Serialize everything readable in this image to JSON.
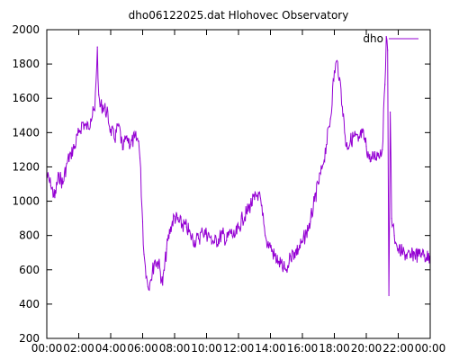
{
  "chart_data": {
    "type": "line",
    "title": "dho06122025.dat Hlohovec Observatory",
    "xlabel": "",
    "ylabel": "",
    "ylim": [
      200,
      2000
    ],
    "y_ticks": [
      200,
      400,
      600,
      800,
      1000,
      1200,
      1400,
      1600,
      1800,
      2000
    ],
    "xlim": [
      "00:00",
      "24:00"
    ],
    "x_ticks": [
      "00:00",
      "02:00",
      "04:00",
      "06:00",
      "08:00",
      "10:00",
      "12:00",
      "14:00",
      "16:00",
      "18:00",
      "20:00",
      "22:00",
      "00:00"
    ],
    "grid": false,
    "legend_position": "top-right",
    "series": [
      {
        "name": "dho",
        "color": "#9400d3",
        "x": [
          "00:00",
          "00:15",
          "00:30",
          "00:45",
          "01:00",
          "01:15",
          "01:30",
          "01:45",
          "02:00",
          "02:15",
          "02:30",
          "02:45",
          "03:00",
          "03:10",
          "03:15",
          "03:20",
          "03:30",
          "03:45",
          "04:00",
          "04:15",
          "04:30",
          "04:45",
          "05:00",
          "05:15",
          "05:30",
          "05:45",
          "05:50",
          "06:00",
          "06:05",
          "06:10",
          "06:15",
          "06:20",
          "06:30",
          "06:45",
          "07:00",
          "07:15",
          "07:30",
          "07:45",
          "08:00",
          "08:15",
          "08:30",
          "08:45",
          "09:00",
          "09:15",
          "09:30",
          "09:45",
          "10:00",
          "10:15",
          "10:30",
          "10:45",
          "11:00",
          "11:15",
          "11:30",
          "11:45",
          "12:00",
          "12:15",
          "12:30",
          "12:45",
          "13:00",
          "13:15",
          "13:30",
          "13:40",
          "13:45",
          "14:00",
          "14:15",
          "14:30",
          "14:45",
          "15:00",
          "15:10",
          "15:15",
          "15:30",
          "15:45",
          "16:00",
          "16:15",
          "16:30",
          "16:45",
          "17:00",
          "17:15",
          "17:30",
          "17:45",
          "18:00",
          "18:10",
          "18:20",
          "18:30",
          "18:45",
          "19:00",
          "19:15",
          "19:30",
          "19:45",
          "20:00",
          "20:15",
          "20:30",
          "20:45",
          "21:00",
          "21:10",
          "21:15",
          "21:20",
          "21:25",
          "21:30",
          "21:35",
          "21:40",
          "21:45",
          "21:50",
          "21:55",
          "22:00",
          "22:15",
          "22:30",
          "22:45",
          "23:00",
          "23:15",
          "23:30",
          "23:45",
          "23:59"
        ],
        "values": [
          1150,
          1090,
          1020,
          1160,
          1100,
          1220,
          1280,
          1320,
          1400,
          1460,
          1420,
          1480,
          1530,
          1900,
          1620,
          1550,
          1560,
          1520,
          1420,
          1360,
          1450,
          1300,
          1380,
          1330,
          1370,
          1350,
          1250,
          880,
          690,
          620,
          560,
          500,
          540,
          650,
          640,
          510,
          720,
          850,
          910,
          880,
          860,
          850,
          800,
          770,
          780,
          820,
          810,
          790,
          760,
          780,
          810,
          770,
          820,
          790,
          840,
          900,
          930,
          980,
          1010,
          1050,
          920,
          800,
          770,
          730,
          680,
          650,
          610,
          600,
          640,
          680,
          700,
          720,
          760,
          820,
          880,
          1000,
          1100,
          1200,
          1330,
          1480,
          1760,
          1820,
          1720,
          1550,
          1320,
          1350,
          1380,
          1350,
          1400,
          1320,
          1230,
          1260,
          1280,
          1300,
          1680,
          1960,
          1880,
          450,
          1520,
          900,
          860,
          800,
          760,
          740,
          720,
          700,
          690,
          670,
          700,
          680,
          690,
          670,
          680
        ]
      }
    ]
  }
}
